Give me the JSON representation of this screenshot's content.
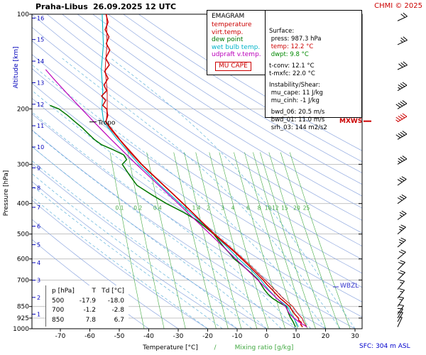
{
  "header": {
    "station": "Praha-Libus",
    "datetime": "26.09.2025 12 UTC",
    "copyright": "CHMI © 2025"
  },
  "footer": {
    "sfc": "SFC: 304 m ASL"
  },
  "labels": {
    "mxws": "MXWS",
    "wbzl": "WBZL",
    "tropo": "Tropo"
  },
  "legend": {
    "title": "EMAGRAM",
    "items": [
      {
        "label": "temperature",
        "color": "#cc0000"
      },
      {
        "label": "virt.temp.",
        "color": "#cc0000"
      },
      {
        "label": "dew point",
        "color": "#007700"
      },
      {
        "label": "wet bulb temp.",
        "color": "#00b4c8"
      },
      {
        "label": "udpraft v.temp.",
        "color": "#bb00bb"
      }
    ],
    "cape_label": "MU CAPE"
  },
  "info_panel": {
    "lines": [
      "Surface:",
      " press: 987.3 hPa",
      " temp: 12.2 °C",
      " dwpt: 9.8 °C",
      "",
      "t-conv: 12.1 °C",
      "t-mxfc: 22.0 °C",
      "",
      "Instability/Shear:",
      " mu_cape: 11 J/kg",
      " mu_cinh: -1 J/kg",
      "",
      " bwd_06: 20.5 m/s",
      " bwd_01: 11.0 m/s",
      " srh_03: 144 m2/s2"
    ],
    "line_colors": {
      "2": "#cc0000",
      "3": "#008800"
    }
  },
  "table": {
    "headers": [
      "p [hPa]",
      "T",
      "Td [°C]"
    ],
    "rows": [
      [
        "500",
        "-17.9",
        "-18.0"
      ],
      [
        "700",
        "-1.2",
        "-2.8"
      ],
      [
        "850",
        "7.8",
        "6.7"
      ]
    ]
  },
  "chart_data": {
    "type": "line",
    "subtype": "emagram-sounding",
    "title": "Praha-Libus 26.09.2025 12 UTC",
    "xlabel": "Temperature [°C]",
    "xlabel2": "Mixing ratio [g/kg]",
    "ylabel_left": "Pressure [hPa]",
    "ylabel_alt": "Altitude [km]",
    "pressure_range_hPa": [
      100,
      1000
    ],
    "temp_ticks": [
      -70,
      -60,
      -50,
      -40,
      -30,
      -20,
      -10,
      0,
      10,
      20,
      30
    ],
    "pressure_ticks": [
      100,
      200,
      300,
      400,
      500,
      600,
      700,
      850,
      925,
      1000
    ],
    "isobar_lines": [
      200,
      300,
      400,
      500,
      600,
      700,
      850,
      925
    ],
    "altitude_km_pressures": [
      898.8,
      795.0,
      701.2,
      616.6,
      540.5,
      472.2,
      411.1,
      356.5,
      308.0,
      264.4,
      226.3,
      193.3,
      165.1,
      141.0,
      120.4,
      102.9
    ],
    "dry_adiabats_C": [
      -40,
      -30,
      -20,
      -10,
      0,
      10,
      20,
      30,
      40,
      50,
      60,
      70,
      80,
      90,
      100,
      110,
      120,
      130,
      140,
      150,
      160,
      170
    ],
    "moist_adiabats_C": [
      -20,
      -15,
      -10,
      -5,
      0,
      5,
      10,
      15,
      20,
      25,
      30
    ],
    "mixing_ratio_g_kg": [
      0.1,
      0.2,
      0.4,
      1,
      1.4,
      2,
      3,
      4,
      6,
      8,
      10,
      12,
      15,
      20,
      25
    ],
    "mixing_ratio_labels": [
      "0.1",
      "0.2",
      "0.4",
      "1",
      "1.4",
      "2",
      "3",
      "4",
      "6",
      "8",
      "10",
      "12",
      "15",
      "20",
      "25"
    ],
    "tropopause_hPa": 220,
    "mxws_hPa": 220,
    "wbzl_hPa": 736,
    "surface": {
      "press_hPa": 987.3,
      "temp_C": 12.2,
      "dwpt_C": 9.8
    },
    "colors": {
      "temperature": "#cc0000",
      "virtual": "#cc0000",
      "dew_point": "#007700",
      "wet_bulb": "#00b4c8",
      "updraft": "#bb00bb",
      "mixing_ratio": "#44aa44",
      "dry_adiabat": "#8fa8e0",
      "moist_adiabat": "#64b4dc",
      "grid": "#b0b0b0",
      "axis_blue": "#0000bb",
      "accent_red": "#cc0000",
      "wbzl_blue": "#3333cc"
    },
    "series": {
      "temperature": [
        [
          987,
          12.2
        ],
        [
          970,
          11.6
        ],
        [
          955,
          11.8
        ],
        [
          940,
          10.9
        ],
        [
          925,
          10.8
        ],
        [
          900,
          9.6
        ],
        [
          875,
          8.7
        ],
        [
          850,
          7.8
        ],
        [
          825,
          6.3
        ],
        [
          800,
          4.6
        ],
        [
          775,
          3.2
        ],
        [
          750,
          1.8
        ],
        [
          725,
          0.2
        ],
        [
          700,
          -1.2
        ],
        [
          675,
          -2.9
        ],
        [
          650,
          -4.6
        ],
        [
          625,
          -6.4
        ],
        [
          600,
          -8.4
        ],
        [
          575,
          -10.5
        ],
        [
          550,
          -12.8
        ],
        [
          525,
          -15.3
        ],
        [
          500,
          -17.9
        ],
        [
          475,
          -20.3
        ],
        [
          450,
          -22.8
        ],
        [
          425,
          -25.5
        ],
        [
          400,
          -28.4
        ],
        [
          375,
          -31.5
        ],
        [
          350,
          -35.0
        ],
        [
          325,
          -38.6
        ],
        [
          300,
          -42.5
        ],
        [
          275,
          -46.3
        ],
        [
          250,
          -50.0
        ],
        [
          240,
          -51.6
        ],
        [
          230,
          -53.2
        ],
        [
          220,
          -54.6
        ],
        [
          210,
          -53.9
        ],
        [
          200,
          -54.3
        ],
        [
          195,
          -55.6
        ],
        [
          188,
          -54.6
        ],
        [
          182,
          -56.0
        ],
        [
          175,
          -54.3
        ],
        [
          168,
          -55.2
        ],
        [
          160,
          -53.8
        ],
        [
          152,
          -55.0
        ],
        [
          145,
          -53.4
        ],
        [
          138,
          -54.6
        ],
        [
          130,
          -53.2
        ],
        [
          124,
          -54.4
        ],
        [
          118,
          -53.5
        ],
        [
          112,
          -54.8
        ],
        [
          106,
          -53.8
        ],
        [
          100,
          -54.5
        ]
      ],
      "virtual_temperature": [
        [
          987,
          13.6
        ],
        [
          950,
          12.5
        ],
        [
          925,
          12.0
        ],
        [
          900,
          10.8
        ],
        [
          850,
          8.9
        ],
        [
          800,
          5.6
        ],
        [
          750,
          2.7
        ],
        [
          700,
          -0.5
        ],
        [
          650,
          -4.0
        ],
        [
          600,
          -7.9
        ],
        [
          550,
          -12.4
        ],
        [
          500,
          -17.6
        ],
        [
          450,
          -22.6
        ],
        [
          400,
          -28.2
        ],
        [
          350,
          -34.8
        ],
        [
          300,
          -42.3
        ],
        [
          250,
          -49.8
        ],
        [
          220,
          -54.4
        ],
        [
          200,
          -54.1
        ],
        [
          175,
          -54.1
        ],
        [
          150,
          -54.8
        ],
        [
          125,
          -54.2
        ],
        [
          100,
          -54.3
        ]
      ],
      "dew_point": [
        [
          987,
          9.8
        ],
        [
          970,
          9.4
        ],
        [
          955,
          9.1
        ],
        [
          940,
          8.7
        ],
        [
          925,
          8.2
        ],
        [
          900,
          7.6
        ],
        [
          875,
          7.1
        ],
        [
          850,
          6.7
        ],
        [
          825,
          4.2
        ],
        [
          800,
          2.0
        ],
        [
          775,
          0.4
        ],
        [
          750,
          -0.8
        ],
        [
          725,
          -1.8
        ],
        [
          700,
          -2.8
        ],
        [
          675,
          -4.5
        ],
        [
          650,
          -6.5
        ],
        [
          625,
          -8.6
        ],
        [
          600,
          -11.0
        ],
        [
          575,
          -12.6
        ],
        [
          550,
          -14.5
        ],
        [
          525,
          -16.2
        ],
        [
          500,
          -18.0
        ],
        [
          475,
          -20.8
        ],
        [
          450,
          -24.0
        ],
        [
          425,
          -28.5
        ],
        [
          400,
          -34.0
        ],
        [
          375,
          -39.0
        ],
        [
          350,
          -44.0
        ],
        [
          325,
          -46.5
        ],
        [
          300,
          -49.0
        ],
        [
          290,
          -47.5
        ],
        [
          280,
          -48.5
        ],
        [
          270,
          -52.0
        ],
        [
          260,
          -56.0
        ],
        [
          250,
          -58.5
        ],
        [
          240,
          -60.5
        ],
        [
          230,
          -62.5
        ],
        [
          220,
          -65.0
        ],
        [
          210,
          -67.5
        ],
        [
          200,
          -70.5
        ],
        [
          195,
          -73.5
        ]
      ],
      "wet_bulb": [
        [
          987,
          10.8
        ],
        [
          950,
          9.9
        ],
        [
          925,
          9.2
        ],
        [
          900,
          8.4
        ],
        [
          850,
          7.1
        ],
        [
          800,
          3.4
        ],
        [
          750,
          0.6
        ],
        [
          700,
          -2.0
        ],
        [
          650,
          -5.3
        ],
        [
          600,
          -9.5
        ],
        [
          550,
          -13.4
        ],
        [
          500,
          -18.0
        ],
        [
          450,
          -23.2
        ],
        [
          400,
          -29.4
        ],
        [
          350,
          -36.1
        ],
        [
          300,
          -43.3
        ],
        [
          250,
          -50.7
        ],
        [
          220,
          -55.3
        ],
        [
          200,
          -55.9
        ],
        [
          175,
          -55.6
        ],
        [
          150,
          -56.1
        ],
        [
          125,
          -55.4
        ],
        [
          100,
          -55.8
        ]
      ],
      "updraft_virtual_temperature": [
        [
          987,
          13.7
        ],
        [
          965,
          12.0
        ],
        [
          950,
          10.9
        ],
        [
          925,
          9.3
        ],
        [
          900,
          7.9
        ],
        [
          875,
          7.1
        ],
        [
          850,
          6.4
        ],
        [
          800,
          3.4
        ],
        [
          750,
          0.3
        ],
        [
          700,
          -3.0
        ],
        [
          650,
          -6.6
        ],
        [
          600,
          -10.4
        ],
        [
          550,
          -14.6
        ],
        [
          500,
          -19.2
        ],
        [
          450,
          -24.3
        ],
        [
          400,
          -30.0
        ],
        [
          350,
          -36.6
        ],
        [
          300,
          -44.2
        ],
        [
          250,
          -52.8
        ],
        [
          220,
          -58.6
        ],
        [
          200,
          -62.8
        ],
        [
          180,
          -67.4
        ],
        [
          160,
          -72.4
        ],
        [
          150,
          -75.0
        ]
      ]
    },
    "wind_barbs": [
      {
        "p": 987,
        "dir": 25,
        "kt": 5
      },
      {
        "p": 950,
        "dir": 30,
        "kt": 10
      },
      {
        "p": 925,
        "dir": 30,
        "kt": 10
      },
      {
        "p": 900,
        "dir": 35,
        "kt": 10
      },
      {
        "p": 850,
        "dir": 35,
        "kt": 15
      },
      {
        "p": 800,
        "dir": 40,
        "kt": 15
      },
      {
        "p": 750,
        "dir": 40,
        "kt": 15
      },
      {
        "p": 700,
        "dir": 45,
        "kt": 20
      },
      {
        "p": 650,
        "dir": 45,
        "kt": 20
      },
      {
        "p": 600,
        "dir": 50,
        "kt": 20
      },
      {
        "p": 550,
        "dir": 50,
        "kt": 25
      },
      {
        "p": 500,
        "dir": 50,
        "kt": 25
      },
      {
        "p": 450,
        "dir": 55,
        "kt": 25
      },
      {
        "p": 400,
        "dir": 55,
        "kt": 30
      },
      {
        "p": 350,
        "dir": 55,
        "kt": 30
      },
      {
        "p": 300,
        "dir": 60,
        "kt": 35
      },
      {
        "p": 250,
        "dir": 60,
        "kt": 40
      },
      {
        "p": 220,
        "dir": 60,
        "kt": 45,
        "color": "#cc0000"
      },
      {
        "p": 200,
        "dir": 60,
        "kt": 40
      },
      {
        "p": 175,
        "dir": 60,
        "kt": 35
      },
      {
        "p": 150,
        "dir": 65,
        "kt": 30
      },
      {
        "p": 125,
        "dir": 65,
        "kt": 25
      },
      {
        "p": 105,
        "dir": 65,
        "kt": 20
      }
    ]
  }
}
